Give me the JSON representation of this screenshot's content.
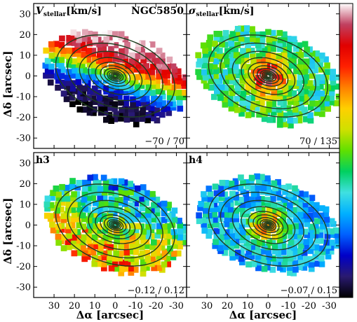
{
  "figure": {
    "galaxy": "NGC5850",
    "xlabel": "Δα [arcsec]",
    "ylabel": "Δδ [arcsec]"
  },
  "chart_data": [
    {
      "type": "heatmap",
      "name": "velocity",
      "title_main": "V",
      "title_sub": "stellar",
      "title_unit": "[km/s]",
      "range_label": "−70 / 70",
      "range": [
        -70,
        70
      ],
      "xlim": [
        40,
        -35
      ],
      "ylim": [
        -35,
        35
      ],
      "xticks": [
        30,
        20,
        10,
        0,
        -10,
        -20,
        -30
      ],
      "yticks": [
        -30,
        -20,
        -10,
        0,
        10,
        20,
        30
      ],
      "field": "rotation"
    },
    {
      "type": "heatmap",
      "name": "dispersion",
      "title_main": "σ",
      "title_sub": "stellar",
      "title_unit": "[km/s]",
      "range_label": "70 / 135",
      "range": [
        70,
        135
      ],
      "xlim": [
        40,
        -35
      ],
      "ylim": [
        -35,
        35
      ],
      "xticks": [
        30,
        20,
        10,
        0,
        -10,
        -20,
        -30
      ],
      "yticks": [
        -30,
        -20,
        -10,
        0,
        10,
        20,
        30
      ],
      "field": "centralpeak"
    },
    {
      "type": "heatmap",
      "name": "h3",
      "title_main": "h3",
      "title_sub": "",
      "title_unit": "",
      "range_label": "−0.12 / 0.12",
      "range": [
        -0.12,
        0.12
      ],
      "xlim": [
        40,
        -35
      ],
      "ylim": [
        -35,
        35
      ],
      "xticks": [
        30,
        20,
        10,
        0,
        -10,
        -20,
        -30
      ],
      "yticks": [
        -30,
        -20,
        -10,
        0,
        10,
        20,
        30
      ],
      "field": "noisy"
    },
    {
      "type": "heatmap",
      "name": "h4",
      "title_main": "h4",
      "title_sub": "",
      "title_unit": "",
      "range_label": "−0.07 / 0.15",
      "range": [
        -0.07,
        0.15
      ],
      "xlim": [
        40,
        -35
      ],
      "ylim": [
        -35,
        35
      ],
      "xticks": [
        30,
        20,
        10,
        0,
        -10,
        -20,
        -30
      ],
      "yticks": [
        -30,
        -20,
        -10,
        0,
        10,
        20,
        30
      ],
      "field": "lowwithpeak"
    }
  ],
  "colorbar": {
    "colors": [
      "#000000",
      "#2a1a70",
      "#0000c8",
      "#0060ff",
      "#00b0ff",
      "#40e0e0",
      "#00d060",
      "#60e000",
      "#d0e000",
      "#ffd000",
      "#ff8000",
      "#ff2000",
      "#e00000",
      "#c04060",
      "#ffffff"
    ]
  },
  "colors": {
    "contour": "#1e3d1e",
    "axes": "#000000"
  }
}
